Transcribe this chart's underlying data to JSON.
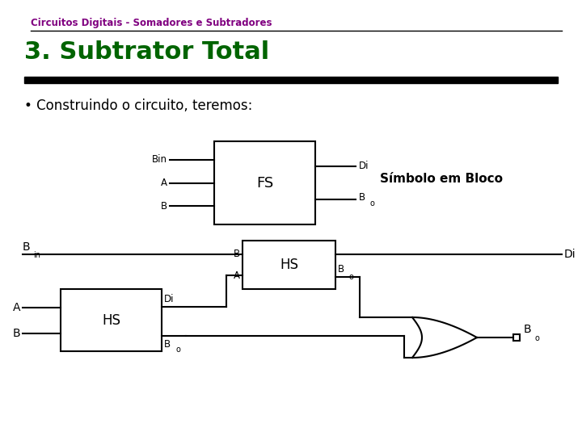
{
  "title_top": "Circuitos Digitais - Somadores e Subtradores",
  "title_main": "3. Subtrator Total",
  "bullet_text": "Construindo o circuito, teremos:",
  "title_top_color": "#800080",
  "title_main_color": "#006400",
  "bullet_color": "#000000",
  "bg_color": "#ffffff",
  "line_color": "#000000",
  "symbol_label": "Símbolo em Bloco"
}
